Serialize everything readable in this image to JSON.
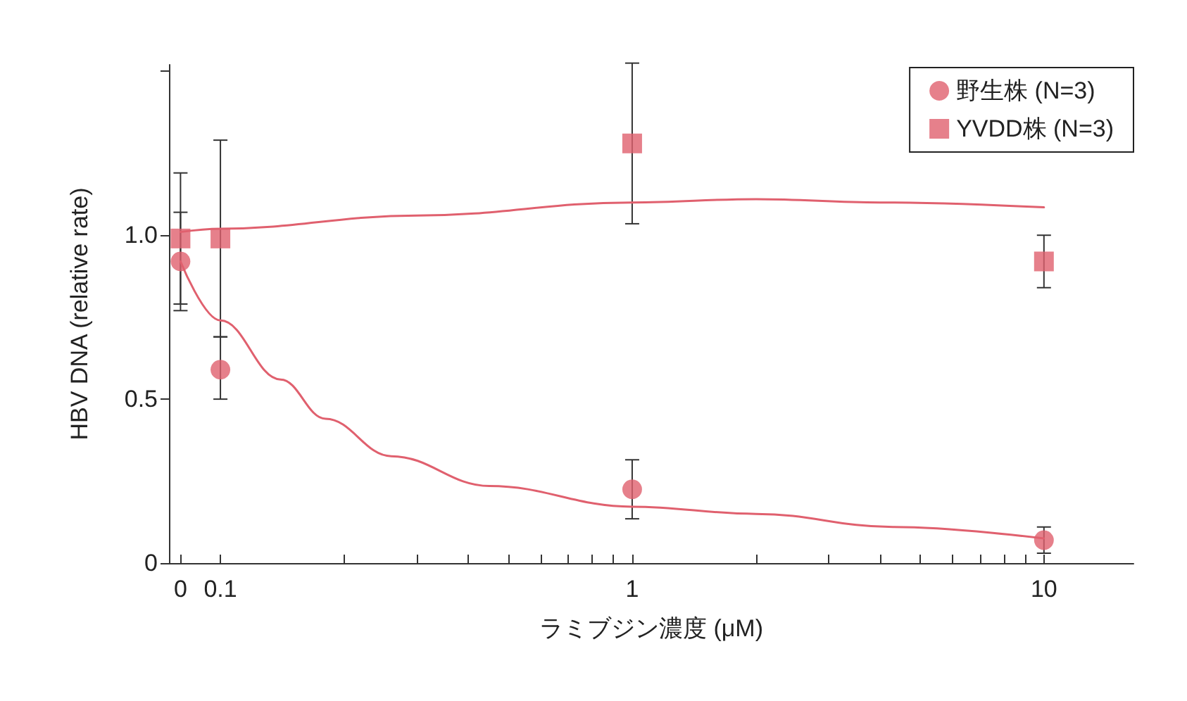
{
  "chart_data": {
    "type": "scatter",
    "xlabel": "ラミブジン濃度 (μM)",
    "ylabel": "HBV DNA (relative rate)",
    "log": "x",
    "xlim": [
      0.075,
      16.5
    ],
    "ylim": [
      0,
      1.52
    ],
    "xticks": [
      {
        "value": 0.08,
        "label": "0"
      },
      0.1,
      {
        "value": 0.2,
        "label": null
      },
      {
        "value": 0.3,
        "label": null
      },
      {
        "value": 0.4,
        "label": null
      },
      {
        "value": 0.5,
        "label": null
      },
      {
        "value": 0.6,
        "label": null
      },
      {
        "value": 0.7,
        "label": null
      },
      {
        "value": 0.8,
        "label": null
      },
      {
        "value": 0.9,
        "label": null
      },
      1,
      {
        "value": 2,
        "label": null
      },
      {
        "value": 3,
        "label": null
      },
      {
        "value": 4,
        "label": null
      },
      {
        "value": 5,
        "label": null
      },
      {
        "value": 6,
        "label": null
      },
      {
        "value": 7,
        "label": null
      },
      {
        "value": 8,
        "label": null
      },
      {
        "value": 9,
        "label": null
      },
      10
    ],
    "yticks": [
      0,
      0.5,
      {
        "value": 1,
        "label": "1.0"
      },
      {
        "value": 1.5,
        "label": null
      }
    ],
    "grid": false,
    "legend": "top right",
    "series": [
      {
        "name": "野生株 (N=3)",
        "color": "#e0606e",
        "marker": "circle",
        "x": [
          0.08,
          0.1,
          1,
          10
        ],
        "values": [
          0.92,
          0.59,
          0.225,
          0.07
        ],
        "errors": [
          0.15,
          [
            0.5,
            0.69
          ],
          0.09,
          0.04
        ]
      },
      {
        "name": "YVDD株 (N=3)",
        "color": "#e0606e",
        "marker": "square",
        "x": [
          0.08,
          0.1,
          1,
          10
        ],
        "values": [
          0.99,
          0.99,
          1.28,
          0.92
        ],
        "errors": [
          0.2,
          0.3,
          0.245,
          0.08
        ]
      },
      {
        "type": "line",
        "color": "#e0606e",
        "marker": "none",
        "x": [
          0.08,
          0.1,
          0.14,
          0.18,
          0.26,
          0.45,
          1,
          2,
          4.3,
          10
        ],
        "values": [
          0.92,
          0.74,
          0.56,
          0.44,
          0.326,
          0.235,
          0.172,
          0.15,
          0.11,
          0.075
        ]
      },
      {
        "type": "line",
        "color": "#e0606e",
        "marker": "none",
        "x": [
          0.08,
          0.1,
          0.3,
          1,
          2,
          4,
          10
        ],
        "values": [
          1.01,
          1.02,
          1.06,
          1.1,
          1.11,
          1.1,
          1.085
        ]
      }
    ]
  }
}
